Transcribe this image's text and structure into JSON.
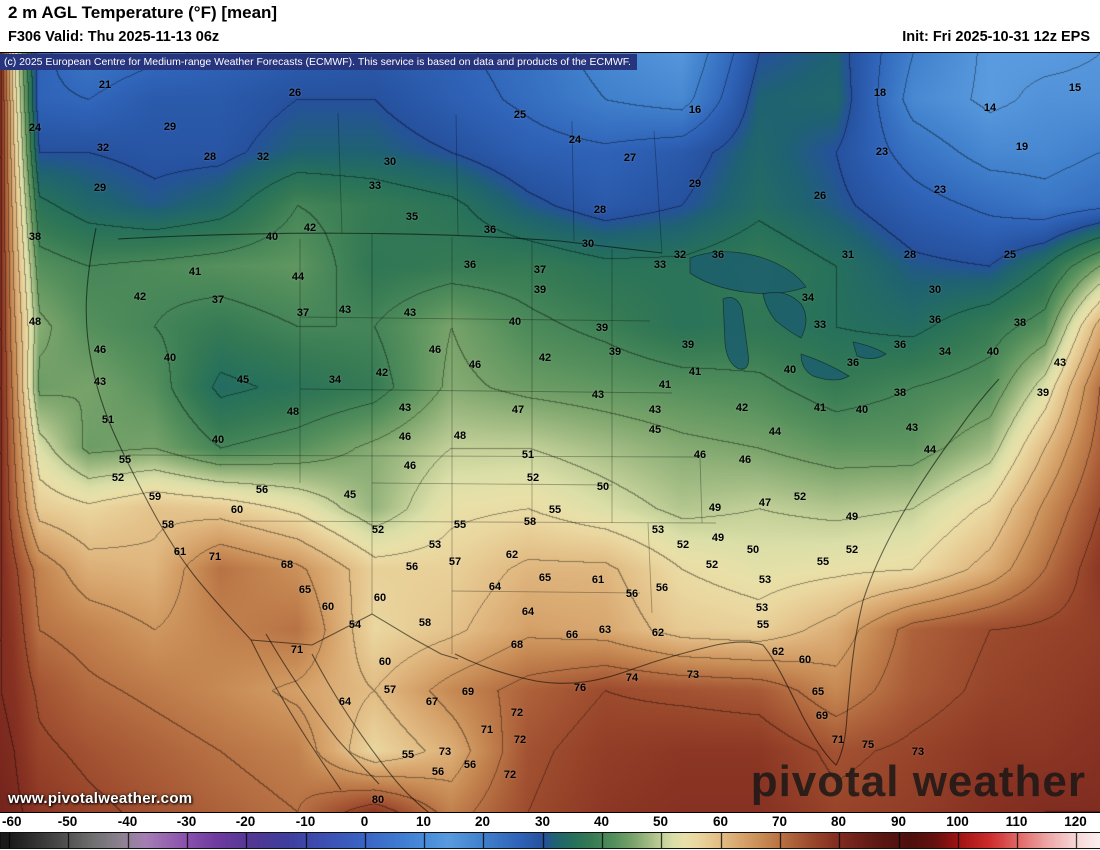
{
  "header": {
    "title": "2 m AGL Temperature (°F) [mean]",
    "valid_label": "F306 Valid: Thu 2025-11-13 06z",
    "init_label": "Init: Fri 2025-10-31 12z EPS"
  },
  "copyright": "(c) 2025 European Centre for Medium-range Weather Forecasts (ECMWF). This service is based on data and products of the ECMWF.",
  "watermarks": {
    "url": "www.pivotalweather.com",
    "brand": "pivotal weather"
  },
  "colorbar": {
    "ticks": [
      -60,
      -50,
      -40,
      -30,
      -20,
      -10,
      0,
      10,
      20,
      30,
      40,
      50,
      60,
      70,
      80,
      90,
      100,
      110,
      120
    ],
    "min": -60,
    "max": 124
  },
  "chart_data": {
    "type": "heatmap",
    "title": "2 m AGL Temperature (°F) [mean]",
    "units": "°F",
    "model": "ECMWF EPS",
    "colormap_stops": [
      [
        -62,
        "#161616"
      ],
      [
        -60,
        "#1a1a1a"
      ],
      [
        -52,
        "#474747"
      ],
      [
        -46,
        "#6f6f6f"
      ],
      [
        -41,
        "#8e8292"
      ],
      [
        -37,
        "#a57eb4"
      ],
      [
        -31,
        "#8d56ad"
      ],
      [
        -25,
        "#6e3ba0"
      ],
      [
        -19,
        "#523794"
      ],
      [
        -13,
        "#3f3e9e"
      ],
      [
        -7,
        "#3c50b2"
      ],
      [
        -1,
        "#3a62c2"
      ],
      [
        5,
        "#3e78cf"
      ],
      [
        11,
        "#4b90dc"
      ],
      [
        14,
        "#5a9ade"
      ],
      [
        20,
        "#4080cc"
      ],
      [
        26,
        "#2f63b8"
      ],
      [
        30,
        "#26519e"
      ],
      [
        32,
        "#1f6272"
      ],
      [
        35,
        "#26705c"
      ],
      [
        38,
        "#357a54"
      ],
      [
        42,
        "#55905c"
      ],
      [
        45,
        "#78a36a"
      ],
      [
        48,
        "#a3bd85"
      ],
      [
        50,
        "#c2d098"
      ],
      [
        52,
        "#dcdfa8"
      ],
      [
        54,
        "#e8e0a8"
      ],
      [
        56,
        "#ead7a0"
      ],
      [
        58,
        "#e6ca92"
      ],
      [
        61,
        "#dfb67e"
      ],
      [
        64,
        "#d4a068"
      ],
      [
        67,
        "#c78a54"
      ],
      [
        70,
        "#b87244"
      ],
      [
        73,
        "#a85a36"
      ],
      [
        76,
        "#97442a"
      ],
      [
        79,
        "#863122"
      ],
      [
        82,
        "#74241c"
      ],
      [
        85,
        "#651c16"
      ],
      [
        88,
        "#581511"
      ],
      [
        92,
        "#4e100d"
      ],
      [
        96,
        "#66100f"
      ],
      [
        100,
        "#a01313"
      ],
      [
        105,
        "#cc2a2a"
      ],
      [
        110,
        "#e06666"
      ],
      [
        115,
        "#eda6a6"
      ],
      [
        120,
        "#f7d9d9"
      ],
      [
        124,
        "#fcf0f0"
      ]
    ],
    "grid": {
      "xs": [
        0,
        0.012,
        0.035,
        0.08,
        0.14,
        0.2,
        0.27,
        0.34,
        0.41,
        0.48,
        0.55,
        0.62,
        0.69,
        0.76,
        0.83,
        0.9,
        0.95,
        1.0
      ],
      "ys": [
        0,
        0.06,
        0.13,
        0.2,
        0.28,
        0.36,
        0.44,
        0.52,
        0.6,
        0.68,
        0.76,
        0.84,
        0.92,
        1.0
      ],
      "temps": [
        [
          80,
          55,
          26,
          22,
          24,
          26,
          27,
          28,
          26,
          23,
          18,
          15,
          30,
          32,
          20,
          14,
          14,
          15
        ],
        [
          80,
          58,
          26,
          25,
          28,
          28,
          30,
          30,
          27,
          24,
          20,
          18,
          32,
          33,
          18,
          14,
          16,
          16
        ],
        [
          80,
          60,
          30,
          30,
          29,
          29,
          32,
          32,
          30,
          27,
          26,
          28,
          33,
          30,
          23,
          18,
          18,
          20
        ],
        [
          80,
          62,
          36,
          33,
          31,
          33,
          40,
          38,
          36,
          31,
          28,
          30,
          34,
          31,
          27,
          24,
          22,
          24
        ],
        [
          80,
          64,
          42,
          40,
          41,
          42,
          43,
          37,
          38,
          38,
          36,
          36,
          38,
          35,
          31,
          30,
          35,
          45
        ],
        [
          80,
          66,
          46,
          42,
          40,
          38,
          40,
          40,
          45,
          41,
          39,
          36,
          37,
          35,
          34,
          38,
          42,
          62
        ],
        [
          80,
          68,
          44,
          45,
          42,
          34,
          36,
          38,
          46,
          44,
          43,
          42,
          41,
          38,
          40,
          42,
          52,
          70
        ],
        [
          80,
          70,
          52,
          44,
          45,
          40,
          42,
          46,
          50,
          50,
          48,
          46,
          45,
          43,
          43,
          48,
          60,
          72
        ],
        [
          80,
          72,
          58,
          56,
          59,
          58,
          54,
          47,
          54,
          55,
          52,
          49,
          50,
          49,
          50,
          56,
          66,
          75
        ],
        [
          80,
          76,
          68,
          62,
          61,
          70,
          66,
          57,
          57,
          61,
          61,
          55,
          53,
          54,
          55,
          62,
          70,
          78
        ],
        [
          80,
          78,
          70,
          68,
          65,
          68,
          70,
          56,
          59,
          64,
          63,
          58,
          57,
          62,
          72,
          75,
          76,
          77
        ],
        [
          80,
          79,
          74,
          71,
          69,
          67,
          64,
          60,
          67,
          72,
          75,
          74,
          73,
          67,
          73,
          76,
          77,
          78
        ],
        [
          81,
          80,
          76,
          74,
          72,
          70,
          68,
          56,
          62,
          74,
          77,
          78,
          78,
          74,
          76,
          78,
          78,
          79
        ],
        [
          82,
          81,
          78,
          76,
          74,
          72,
          70,
          78,
          68,
          75,
          78,
          79,
          79,
          76,
          77,
          79,
          80,
          80
        ]
      ]
    },
    "labels": [
      [
        105,
        85,
        21
      ],
      [
        295,
        93,
        26
      ],
      [
        880,
        93,
        18
      ],
      [
        1075,
        88,
        15
      ],
      [
        35,
        128,
        24
      ],
      [
        170,
        127,
        29
      ],
      [
        520,
        115,
        25
      ],
      [
        695,
        110,
        16
      ],
      [
        990,
        108,
        14
      ],
      [
        103,
        148,
        32
      ],
      [
        210,
        157,
        28
      ],
      [
        263,
        157,
        32
      ],
      [
        390,
        162,
        30
      ],
      [
        575,
        140,
        24
      ],
      [
        630,
        158,
        27
      ],
      [
        882,
        152,
        23
      ],
      [
        1022,
        147,
        19
      ],
      [
        100,
        188,
        29
      ],
      [
        375,
        186,
        33
      ],
      [
        695,
        184,
        29
      ],
      [
        820,
        196,
        26
      ],
      [
        940,
        190,
        23
      ],
      [
        412,
        217,
        35
      ],
      [
        600,
        210,
        28
      ],
      [
        35,
        237,
        38
      ],
      [
        272,
        237,
        40
      ],
      [
        310,
        228,
        42
      ],
      [
        490,
        230,
        36
      ],
      [
        588,
        244,
        30
      ],
      [
        680,
        255,
        32
      ],
      [
        718,
        255,
        36
      ],
      [
        848,
        255,
        31
      ],
      [
        910,
        255,
        28
      ],
      [
        1010,
        255,
        25
      ],
      [
        195,
        272,
        41
      ],
      [
        298,
        277,
        44
      ],
      [
        470,
        265,
        36
      ],
      [
        540,
        270,
        37
      ],
      [
        660,
        265,
        33
      ],
      [
        140,
        297,
        42
      ],
      [
        218,
        300,
        37
      ],
      [
        345,
        310,
        43
      ],
      [
        540,
        290,
        39
      ],
      [
        808,
        298,
        34
      ],
      [
        935,
        290,
        30
      ],
      [
        35,
        322,
        48
      ],
      [
        303,
        313,
        37
      ],
      [
        410,
        313,
        43
      ],
      [
        515,
        322,
        40
      ],
      [
        602,
        328,
        39
      ],
      [
        820,
        325,
        33
      ],
      [
        935,
        320,
        36
      ],
      [
        1020,
        323,
        38
      ],
      [
        100,
        350,
        46
      ],
      [
        170,
        358,
        40
      ],
      [
        435,
        350,
        46
      ],
      [
        615,
        352,
        39
      ],
      [
        688,
        345,
        39
      ],
      [
        900,
        345,
        36
      ],
      [
        945,
        352,
        34
      ],
      [
        993,
        352,
        40
      ],
      [
        100,
        382,
        43
      ],
      [
        243,
        380,
        45
      ],
      [
        335,
        380,
        34
      ],
      [
        382,
        373,
        42
      ],
      [
        475,
        365,
        46
      ],
      [
        545,
        358,
        42
      ],
      [
        695,
        372,
        41
      ],
      [
        790,
        370,
        40
      ],
      [
        853,
        363,
        36
      ],
      [
        1060,
        363,
        43
      ],
      [
        108,
        420,
        51
      ],
      [
        293,
        412,
        48
      ],
      [
        405,
        408,
        43
      ],
      [
        598,
        395,
        43
      ],
      [
        655,
        410,
        43
      ],
      [
        665,
        385,
        41
      ],
      [
        742,
        408,
        42
      ],
      [
        820,
        408,
        41
      ],
      [
        900,
        393,
        38
      ],
      [
        1043,
        393,
        39
      ],
      [
        125,
        460,
        55
      ],
      [
        218,
        440,
        40
      ],
      [
        405,
        437,
        46
      ],
      [
        460,
        436,
        48
      ],
      [
        518,
        410,
        47
      ],
      [
        655,
        430,
        45
      ],
      [
        775,
        432,
        44
      ],
      [
        862,
        410,
        40
      ],
      [
        912,
        428,
        43
      ],
      [
        118,
        478,
        52
      ],
      [
        155,
        497,
        59
      ],
      [
        410,
        466,
        46
      ],
      [
        528,
        455,
        51
      ],
      [
        700,
        455,
        46
      ],
      [
        745,
        460,
        46
      ],
      [
        930,
        450,
        44
      ],
      [
        262,
        490,
        56
      ],
      [
        350,
        495,
        45
      ],
      [
        533,
        478,
        52
      ],
      [
        603,
        487,
        50
      ],
      [
        715,
        508,
        49
      ],
      [
        765,
        503,
        47
      ],
      [
        800,
        497,
        52
      ],
      [
        852,
        517,
        49
      ],
      [
        168,
        525,
        58
      ],
      [
        237,
        510,
        60
      ],
      [
        555,
        510,
        55
      ],
      [
        530,
        522,
        58
      ],
      [
        658,
        530,
        53
      ],
      [
        683,
        545,
        52
      ],
      [
        718,
        538,
        49
      ],
      [
        753,
        550,
        50
      ],
      [
        823,
        562,
        55
      ],
      [
        852,
        550,
        52
      ],
      [
        180,
        552,
        61
      ],
      [
        215,
        557,
        71
      ],
      [
        378,
        530,
        52
      ],
      [
        435,
        545,
        53
      ],
      [
        460,
        525,
        55
      ],
      [
        512,
        555,
        62
      ],
      [
        455,
        562,
        57
      ],
      [
        412,
        567,
        56
      ],
      [
        598,
        580,
        61
      ],
      [
        712,
        565,
        52
      ],
      [
        765,
        580,
        53
      ],
      [
        287,
        565,
        68
      ],
      [
        305,
        590,
        65
      ],
      [
        328,
        607,
        60
      ],
      [
        380,
        598,
        60
      ],
      [
        495,
        587,
        64
      ],
      [
        545,
        578,
        65
      ],
      [
        632,
        594,
        56
      ],
      [
        662,
        588,
        56
      ],
      [
        762,
        608,
        53
      ],
      [
        355,
        625,
        54
      ],
      [
        425,
        623,
        58
      ],
      [
        528,
        612,
        64
      ],
      [
        572,
        635,
        66
      ],
      [
        605,
        630,
        63
      ],
      [
        658,
        633,
        62
      ],
      [
        763,
        625,
        55
      ],
      [
        297,
        650,
        71
      ],
      [
        385,
        662,
        60
      ],
      [
        517,
        645,
        68
      ],
      [
        580,
        688,
        76
      ],
      [
        632,
        678,
        74
      ],
      [
        693,
        675,
        73
      ],
      [
        778,
        652,
        62
      ],
      [
        805,
        660,
        60
      ],
      [
        345,
        702,
        64
      ],
      [
        390,
        690,
        57
      ],
      [
        468,
        692,
        69
      ],
      [
        517,
        713,
        72
      ],
      [
        818,
        692,
        65
      ],
      [
        432,
        702,
        67
      ],
      [
        487,
        730,
        71
      ],
      [
        520,
        740,
        72
      ],
      [
        822,
        716,
        69
      ],
      [
        838,
        740,
        71
      ],
      [
        408,
        755,
        55
      ],
      [
        445,
        752,
        73
      ],
      [
        438,
        772,
        56
      ],
      [
        510,
        775,
        72
      ],
      [
        868,
        745,
        75
      ],
      [
        918,
        752,
        73
      ],
      [
        470,
        765,
        56
      ],
      [
        378,
        800,
        80
      ]
    ]
  }
}
